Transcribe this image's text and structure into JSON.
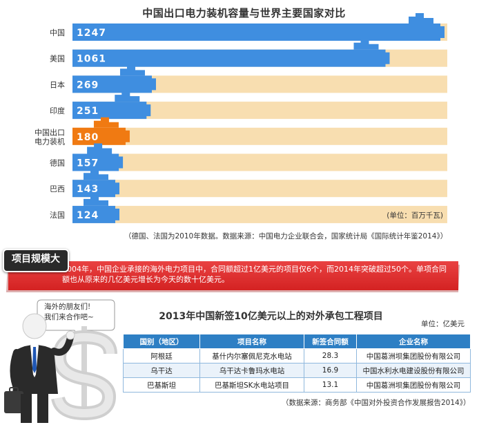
{
  "chart_data": {
    "type": "bar",
    "orientation": "horizontal",
    "title": "中国出口电力装机容量与世界主要国家对比",
    "categories": [
      "中国",
      "美国",
      "日本",
      "印度",
      "中国出口\n电力装机",
      "德国",
      "巴西",
      "法国"
    ],
    "values": [
      1247,
      1061,
      269,
      251,
      180,
      157,
      143,
      124
    ],
    "unit": "(单位：百万千瓦)",
    "highlight_category": "中国出口\n电力装机",
    "colors": {
      "bar": "#3f8ee0",
      "highlight": "#f07a12",
      "track": "#f8deb0"
    }
  },
  "chart_source": "（德国、法国为2010年数据。数据来源：中国电力企业联合会，国家统计局《国际统计年鉴2014》）",
  "banner": {
    "badge": "项目规模大",
    "text": "2004年，中国企业承接的海外电力项目中，合同额超过1亿美元的项目仅6个，而2014年突破超过50个。单项合同额也从原来的几亿美元增长为今天的数十亿美元。",
    "color": "#d9272a"
  },
  "bubble": {
    "line1": "海外的朋友们!",
    "line2": "我们来合作吧~"
  },
  "table": {
    "title": "2013年中国新签10亿美元以上的对外承包工程项目",
    "unit": "单位：亿美元",
    "headers": [
      "国别（地区）",
      "项目名称",
      "新签合同额",
      "企业名称"
    ],
    "rows": [
      [
        "阿根廷",
        "基什内尔塞佩尼克水电站",
        "28.3",
        "中国葛洲坝集团股份有限公司"
      ],
      [
        "乌干达",
        "乌干达卡鲁玛水电站",
        "16.9",
        "中国水利水电建设股份有限公司"
      ],
      [
        "巴基斯坦",
        "巴基斯坦SK水电站项目",
        "13.1",
        "中国葛洲坝集团股份有限公司"
      ]
    ],
    "source": "（数据来源：商务部《中国对外投资合作发展报告2014》）"
  }
}
